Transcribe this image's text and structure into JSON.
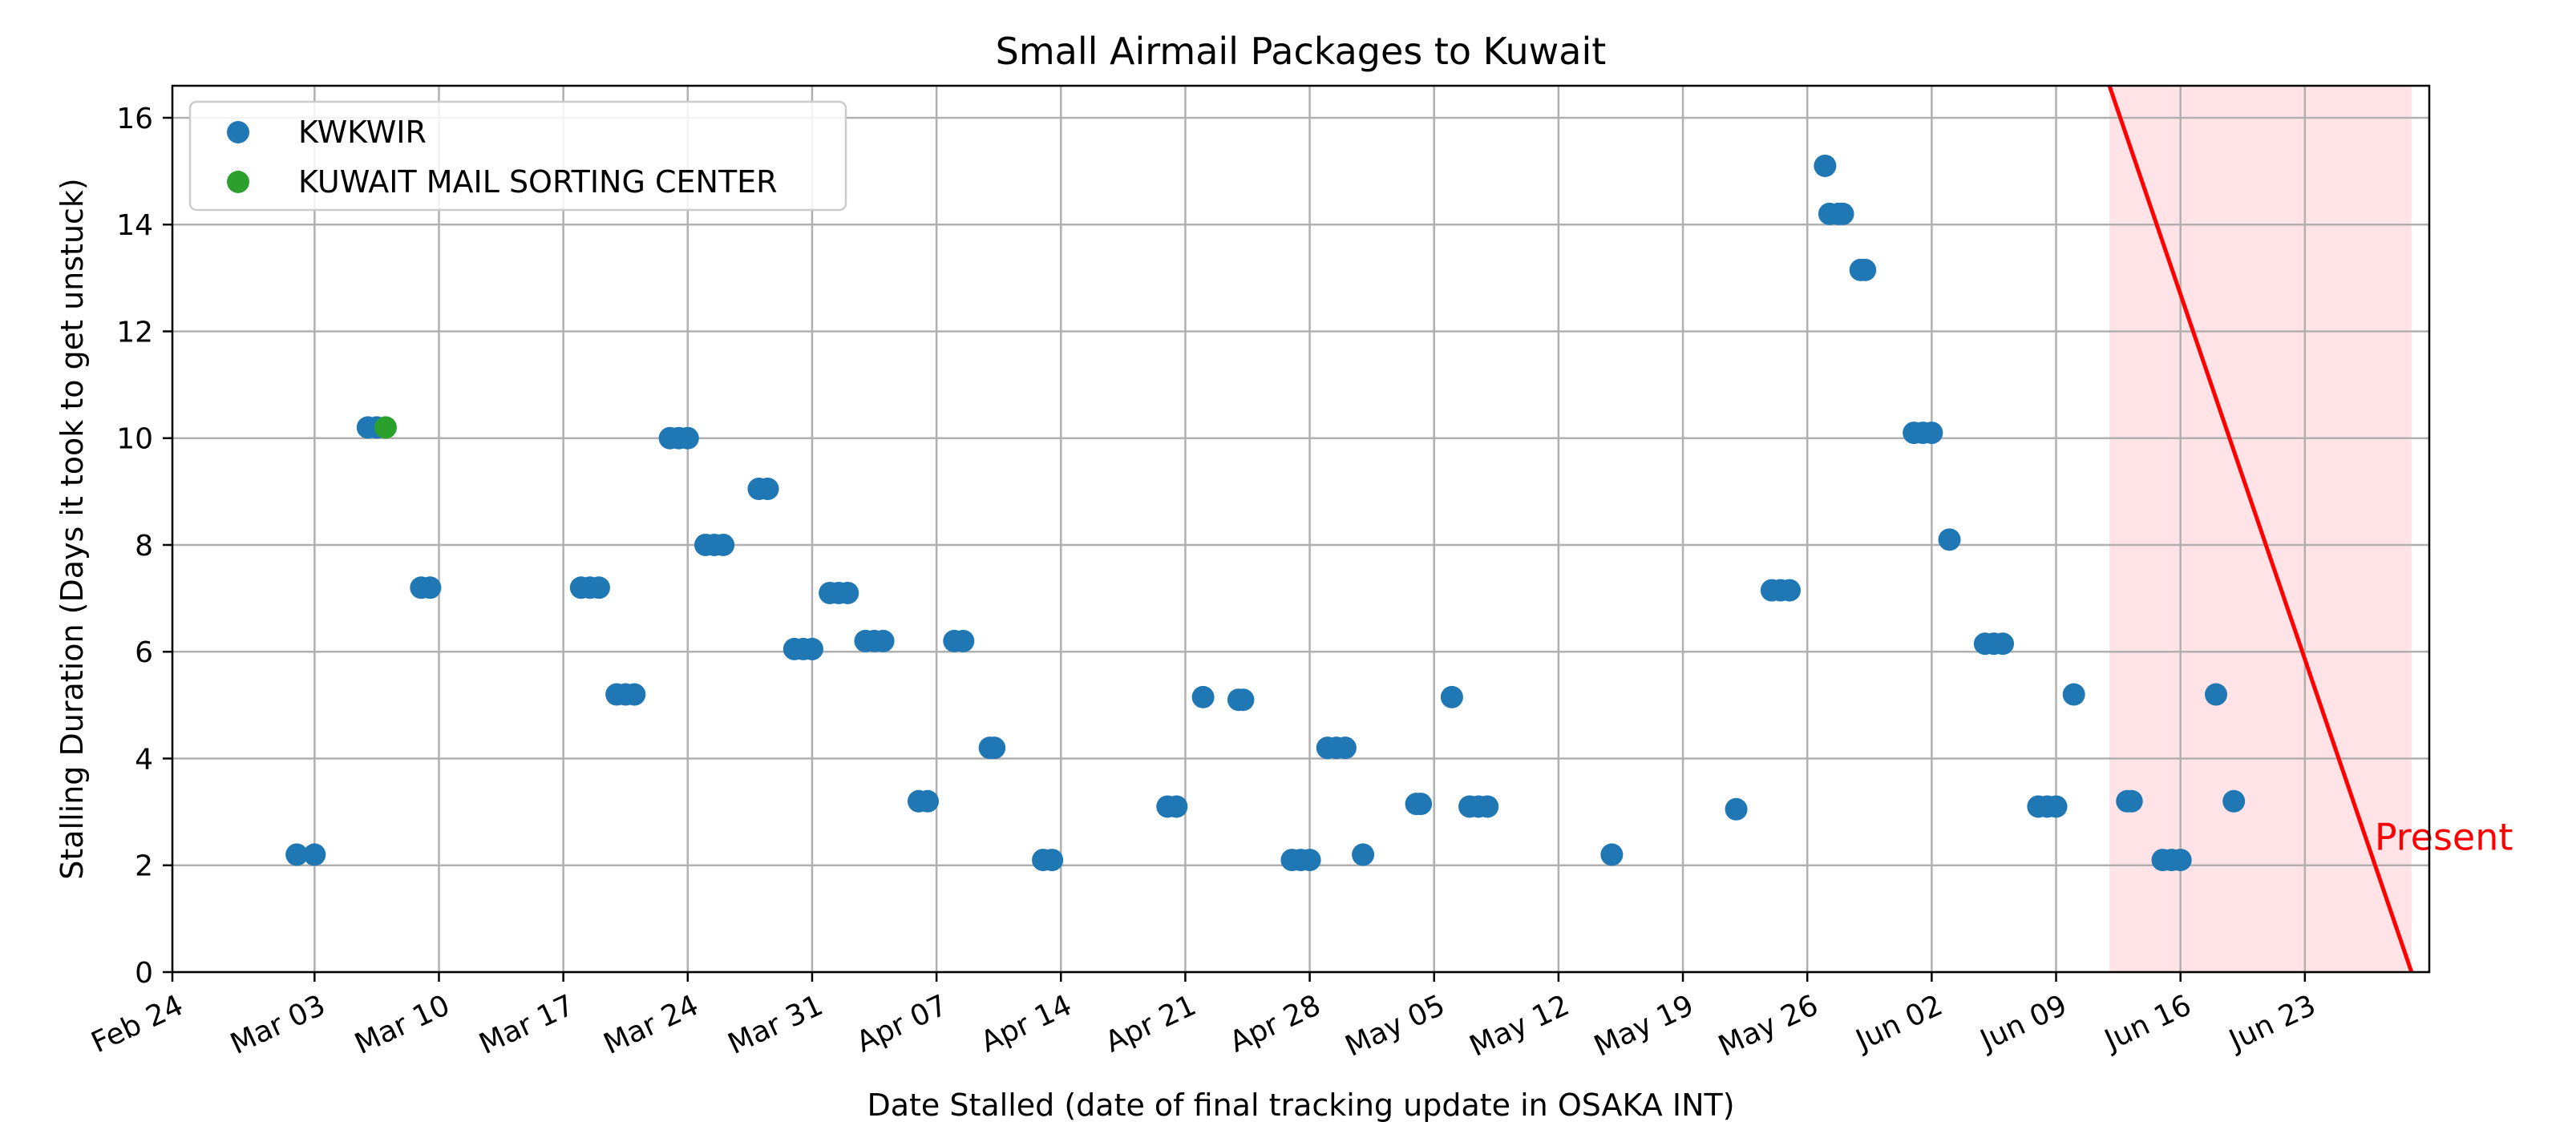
{
  "chart_data": {
    "type": "scatter",
    "title": "Small Airmail Packages to Kuwait",
    "xlabel": "Date Stalled (date of final tracking update in OSAKA INT)",
    "ylabel": "Stalling Duration (Days it took to get unstuck)",
    "x_axis": "date",
    "xlim": [
      "2024-02-24",
      "2024-06-30"
    ],
    "ylim": [
      0,
      16.6
    ],
    "x_ticks": [
      {
        "label": "Feb 24",
        "date": "2024-02-24"
      },
      {
        "label": "Mar 03",
        "date": "2024-03-03"
      },
      {
        "label": "Mar 10",
        "date": "2024-03-10"
      },
      {
        "label": "Mar 17",
        "date": "2024-03-17"
      },
      {
        "label": "Mar 24",
        "date": "2024-03-24"
      },
      {
        "label": "Mar 31",
        "date": "2024-03-31"
      },
      {
        "label": "Apr 07",
        "date": "2024-04-07"
      },
      {
        "label": "Apr 14",
        "date": "2024-04-14"
      },
      {
        "label": "Apr 21",
        "date": "2024-04-21"
      },
      {
        "label": "Apr 28",
        "date": "2024-04-28"
      },
      {
        "label": "May 05",
        "date": "2024-05-05"
      },
      {
        "label": "May 12",
        "date": "2024-05-12"
      },
      {
        "label": "May 19",
        "date": "2024-05-19"
      },
      {
        "label": "May 26",
        "date": "2024-05-26"
      },
      {
        "label": "Jun 02",
        "date": "2024-06-02"
      },
      {
        "label": "Jun 09",
        "date": "2024-06-09"
      },
      {
        "label": "Jun 16",
        "date": "2024-06-16"
      },
      {
        "label": "Jun 23",
        "date": "2024-06-23"
      }
    ],
    "y_ticks": [
      0,
      2,
      4,
      6,
      8,
      10,
      12,
      14,
      16
    ],
    "grid": true,
    "legend": "top-left",
    "series": [
      {
        "name": "KWKWIR",
        "color": "#1f77b4",
        "points": [
          {
            "x": "2024-03-02",
            "y": 2.2
          },
          {
            "x": "2024-03-03",
            "y": 2.2
          },
          {
            "x": "2024-03-06",
            "y": 10.2
          },
          {
            "x": "2024-03-06T12:00",
            "y": 10.2
          },
          {
            "x": "2024-03-09",
            "y": 7.2
          },
          {
            "x": "2024-03-09T12:00",
            "y": 7.2
          },
          {
            "x": "2024-03-18",
            "y": 7.2
          },
          {
            "x": "2024-03-18T12:00",
            "y": 7.2
          },
          {
            "x": "2024-03-19",
            "y": 7.2
          },
          {
            "x": "2024-03-20",
            "y": 5.2
          },
          {
            "x": "2024-03-20T12:00",
            "y": 5.2
          },
          {
            "x": "2024-03-21",
            "y": 5.2
          },
          {
            "x": "2024-03-23",
            "y": 10.0
          },
          {
            "x": "2024-03-23T12:00",
            "y": 10.0
          },
          {
            "x": "2024-03-24",
            "y": 10.0
          },
          {
            "x": "2024-03-25",
            "y": 8.0
          },
          {
            "x": "2024-03-25T12:00",
            "y": 8.0
          },
          {
            "x": "2024-03-26",
            "y": 8.0
          },
          {
            "x": "2024-03-28",
            "y": 9.05
          },
          {
            "x": "2024-03-28T12:00",
            "y": 9.05
          },
          {
            "x": "2024-03-30",
            "y": 6.05
          },
          {
            "x": "2024-03-30T12:00",
            "y": 6.05
          },
          {
            "x": "2024-03-31",
            "y": 6.05
          },
          {
            "x": "2024-04-01",
            "y": 7.1
          },
          {
            "x": "2024-04-01T12:00",
            "y": 7.1
          },
          {
            "x": "2024-04-02",
            "y": 7.1
          },
          {
            "x": "2024-04-03",
            "y": 6.2
          },
          {
            "x": "2024-04-03T12:00",
            "y": 6.2
          },
          {
            "x": "2024-04-04",
            "y": 6.2
          },
          {
            "x": "2024-04-06",
            "y": 3.2
          },
          {
            "x": "2024-04-06T12:00",
            "y": 3.2
          },
          {
            "x": "2024-04-08",
            "y": 6.2
          },
          {
            "x": "2024-04-08T12:00",
            "y": 6.2
          },
          {
            "x": "2024-04-10",
            "y": 4.2
          },
          {
            "x": "2024-04-10T06:00",
            "y": 4.2
          },
          {
            "x": "2024-04-13",
            "y": 2.1
          },
          {
            "x": "2024-04-13T12:00",
            "y": 2.1
          },
          {
            "x": "2024-04-20",
            "y": 3.1
          },
          {
            "x": "2024-04-20T12:00",
            "y": 3.1
          },
          {
            "x": "2024-04-22",
            "y": 5.15
          },
          {
            "x": "2024-04-24",
            "y": 5.1
          },
          {
            "x": "2024-04-24T06:00",
            "y": 5.1
          },
          {
            "x": "2024-04-27",
            "y": 2.1
          },
          {
            "x": "2024-04-27T12:00",
            "y": 2.1
          },
          {
            "x": "2024-04-28",
            "y": 2.1
          },
          {
            "x": "2024-04-29",
            "y": 4.2
          },
          {
            "x": "2024-04-29T12:00",
            "y": 4.2
          },
          {
            "x": "2024-04-30",
            "y": 4.2
          },
          {
            "x": "2024-05-01",
            "y": 2.2
          },
          {
            "x": "2024-05-04",
            "y": 3.15
          },
          {
            "x": "2024-05-04T06:00",
            "y": 3.15
          },
          {
            "x": "2024-05-06",
            "y": 5.15
          },
          {
            "x": "2024-05-07",
            "y": 3.1
          },
          {
            "x": "2024-05-07T12:00",
            "y": 3.1
          },
          {
            "x": "2024-05-08",
            "y": 3.1
          },
          {
            "x": "2024-05-15",
            "y": 2.2
          },
          {
            "x": "2024-05-22",
            "y": 3.05
          },
          {
            "x": "2024-05-24",
            "y": 7.15
          },
          {
            "x": "2024-05-24T12:00",
            "y": 7.15
          },
          {
            "x": "2024-05-25",
            "y": 7.15
          },
          {
            "x": "2024-05-27",
            "y": 15.1
          },
          {
            "x": "2024-05-27T06:00",
            "y": 14.2
          },
          {
            "x": "2024-05-27T18:00",
            "y": 14.2
          },
          {
            "x": "2024-05-28",
            "y": 14.2
          },
          {
            "x": "2024-05-29",
            "y": 13.15
          },
          {
            "x": "2024-05-29T06:00",
            "y": 13.15
          },
          {
            "x": "2024-06-01",
            "y": 10.1
          },
          {
            "x": "2024-06-01T12:00",
            "y": 10.1
          },
          {
            "x": "2024-06-02",
            "y": 10.1
          },
          {
            "x": "2024-06-03",
            "y": 8.1
          },
          {
            "x": "2024-06-05",
            "y": 6.15
          },
          {
            "x": "2024-06-05T12:00",
            "y": 6.15
          },
          {
            "x": "2024-06-06",
            "y": 6.15
          },
          {
            "x": "2024-06-08",
            "y": 3.1
          },
          {
            "x": "2024-06-08T12:00",
            "y": 3.1
          },
          {
            "x": "2024-06-09",
            "y": 3.1
          },
          {
            "x": "2024-06-10",
            "y": 5.2
          },
          {
            "x": "2024-06-13",
            "y": 3.2
          },
          {
            "x": "2024-06-13T06:00",
            "y": 3.2
          },
          {
            "x": "2024-06-15",
            "y": 2.1
          },
          {
            "x": "2024-06-15T12:00",
            "y": 2.1
          },
          {
            "x": "2024-06-16",
            "y": 2.1
          },
          {
            "x": "2024-06-18",
            "y": 5.2
          },
          {
            "x": "2024-06-19",
            "y": 3.2
          }
        ]
      },
      {
        "name": "KUWAIT MAIL SORTING CENTER",
        "color": "#2ca02c",
        "points": [
          {
            "x": "2024-03-07",
            "y": 10.2
          }
        ]
      }
    ],
    "annotations": [
      {
        "type": "line",
        "color": "#ff0000",
        "from": {
          "x": "2024-06-12",
          "y": 16.6
        },
        "to": {
          "x": "2024-06-29",
          "y": 0
        }
      },
      {
        "type": "shaded-region",
        "color": "#ffb6c1",
        "x_range": [
          "2024-06-12",
          "2024-06-29"
        ]
      },
      {
        "type": "text",
        "text": "Present",
        "color": "#ff0000",
        "x": "2024-06-29",
        "y": 2.5
      }
    ]
  }
}
